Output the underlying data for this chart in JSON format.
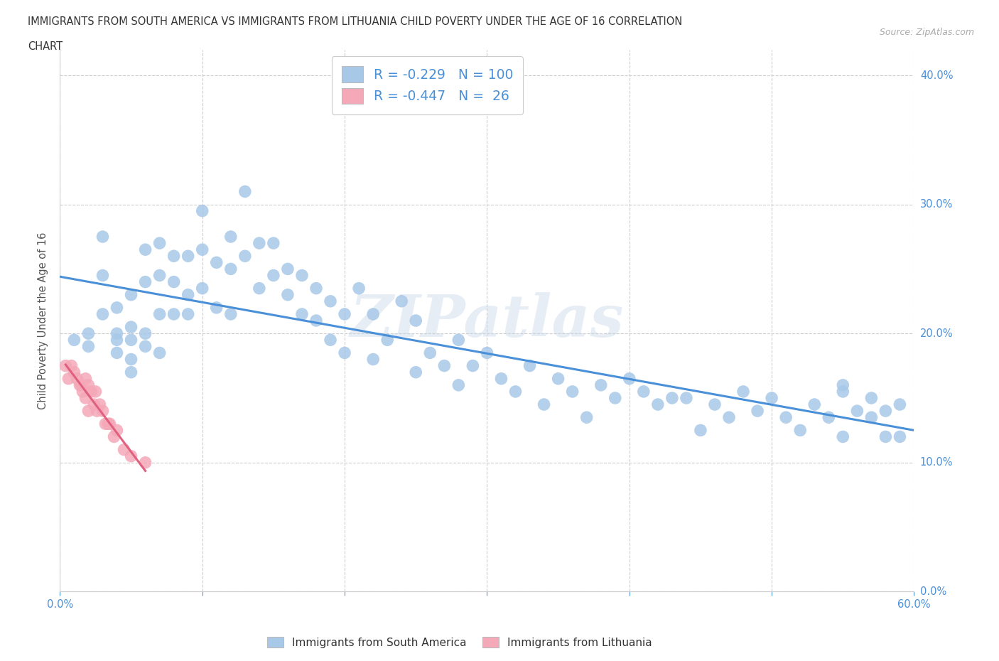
{
  "title_line1": "IMMIGRANTS FROM SOUTH AMERICA VS IMMIGRANTS FROM LITHUANIA CHILD POVERTY UNDER THE AGE OF 16 CORRELATION",
  "title_line2": "CHART",
  "source_text": "Source: ZipAtlas.com",
  "ylabel": "Child Poverty Under the Age of 16",
  "xlim": [
    0.0,
    0.6
  ],
  "ylim": [
    0.0,
    0.42
  ],
  "xtick_vals": [
    0.0,
    0.1,
    0.2,
    0.3,
    0.4,
    0.5,
    0.6
  ],
  "xtick_show": [
    0.0,
    0.6
  ],
  "ytick_vals": [
    0.0,
    0.1,
    0.2,
    0.3,
    0.4
  ],
  "xticklabels_bottom": [
    "0.0%",
    "",
    "",
    "",
    "",
    "",
    "60.0%"
  ],
  "yticklabels_right": [
    "0.0%",
    "10.0%",
    "20.0%",
    "30.0%",
    "40.0%"
  ],
  "color_sa": "#a8c8e8",
  "color_lt": "#f4a8b8",
  "trend_color_sa": "#4a90d9",
  "trend_color_lt": "#e06080",
  "R_sa": -0.229,
  "N_sa": 100,
  "R_lt": -0.447,
  "N_lt": 26,
  "watermark": "ZIPatlas",
  "sa_x": [
    0.01,
    0.02,
    0.02,
    0.03,
    0.03,
    0.03,
    0.04,
    0.04,
    0.04,
    0.04,
    0.05,
    0.05,
    0.05,
    0.05,
    0.05,
    0.06,
    0.06,
    0.06,
    0.06,
    0.07,
    0.07,
    0.07,
    0.07,
    0.08,
    0.08,
    0.08,
    0.09,
    0.09,
    0.09,
    0.1,
    0.1,
    0.1,
    0.11,
    0.11,
    0.12,
    0.12,
    0.12,
    0.13,
    0.13,
    0.14,
    0.14,
    0.15,
    0.15,
    0.16,
    0.16,
    0.17,
    0.17,
    0.18,
    0.18,
    0.19,
    0.19,
    0.2,
    0.2,
    0.21,
    0.22,
    0.22,
    0.23,
    0.24,
    0.25,
    0.25,
    0.26,
    0.27,
    0.28,
    0.28,
    0.29,
    0.3,
    0.31,
    0.32,
    0.33,
    0.34,
    0.35,
    0.36,
    0.37,
    0.38,
    0.39,
    0.4,
    0.41,
    0.42,
    0.43,
    0.44,
    0.45,
    0.46,
    0.47,
    0.48,
    0.49,
    0.5,
    0.51,
    0.52,
    0.53,
    0.54,
    0.55,
    0.55,
    0.56,
    0.57,
    0.57,
    0.58,
    0.58,
    0.59,
    0.59,
    0.55
  ],
  "sa_y": [
    0.195,
    0.2,
    0.19,
    0.275,
    0.245,
    0.215,
    0.22,
    0.2,
    0.195,
    0.185,
    0.23,
    0.205,
    0.195,
    0.18,
    0.17,
    0.265,
    0.24,
    0.2,
    0.19,
    0.27,
    0.245,
    0.215,
    0.185,
    0.26,
    0.24,
    0.215,
    0.26,
    0.23,
    0.215,
    0.295,
    0.265,
    0.235,
    0.255,
    0.22,
    0.275,
    0.25,
    0.215,
    0.31,
    0.26,
    0.27,
    0.235,
    0.27,
    0.245,
    0.25,
    0.23,
    0.245,
    0.215,
    0.235,
    0.21,
    0.225,
    0.195,
    0.215,
    0.185,
    0.235,
    0.215,
    0.18,
    0.195,
    0.225,
    0.21,
    0.17,
    0.185,
    0.175,
    0.195,
    0.16,
    0.175,
    0.185,
    0.165,
    0.155,
    0.175,
    0.145,
    0.165,
    0.155,
    0.135,
    0.16,
    0.15,
    0.165,
    0.155,
    0.145,
    0.15,
    0.15,
    0.125,
    0.145,
    0.135,
    0.155,
    0.14,
    0.15,
    0.135,
    0.125,
    0.145,
    0.135,
    0.16,
    0.12,
    0.14,
    0.135,
    0.15,
    0.12,
    0.14,
    0.12,
    0.145,
    0.155
  ],
  "lt_x": [
    0.004,
    0.006,
    0.008,
    0.01,
    0.012,
    0.014,
    0.015,
    0.016,
    0.018,
    0.018,
    0.02,
    0.02,
    0.022,
    0.024,
    0.025,
    0.026,
    0.028,
    0.03,
    0.032,
    0.034,
    0.035,
    0.038,
    0.04,
    0.045,
    0.05,
    0.06
  ],
  "lt_y": [
    0.175,
    0.165,
    0.175,
    0.17,
    0.165,
    0.16,
    0.16,
    0.155,
    0.165,
    0.15,
    0.16,
    0.14,
    0.155,
    0.145,
    0.155,
    0.14,
    0.145,
    0.14,
    0.13,
    0.13,
    0.13,
    0.12,
    0.125,
    0.11,
    0.105,
    0.1
  ]
}
